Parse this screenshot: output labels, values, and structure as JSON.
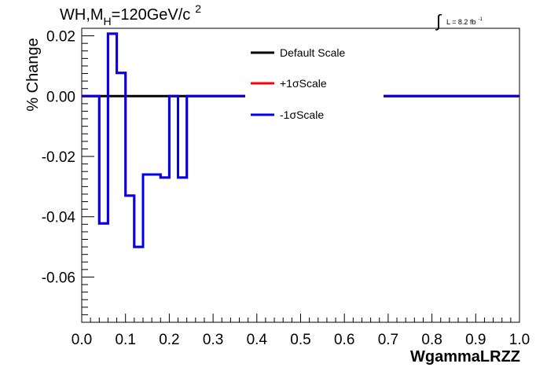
{
  "chart_data": {
    "type": "line",
    "title": "WH,M",
    "title_sub": "H",
    "title_rest": "=120GeV/c",
    "title_sup": "2",
    "lumi": "L = 8.2 fb",
    "lumi_sup": "-1",
    "xlabel": "WgammaLRZZ",
    "ylabel": "% Change",
    "xlim": [
      0.0,
      1.0
    ],
    "ylim": [
      -0.075,
      0.0225
    ],
    "x_ticks": [
      "0.0",
      "0.1",
      "0.2",
      "0.3",
      "0.4",
      "0.5",
      "0.6",
      "0.7",
      "0.8",
      "0.9",
      "1.0"
    ],
    "y_ticks": [
      "-0.06",
      "-0.04",
      "-0.02",
      "0.00",
      "0.02"
    ],
    "grid": false,
    "legend_position": "top-right",
    "series": [
      {
        "name": "Default Scale",
        "color": "#000000",
        "bins_x": [
          0.0,
          0.04,
          0.06,
          0.08,
          0.1,
          0.12,
          0.14,
          0.16,
          0.18,
          0.2,
          0.22,
          0.24,
          0.26,
          0.28,
          0.3,
          0.32,
          0.34,
          0.36,
          0.38,
          0.4,
          0.42,
          0.44,
          0.46,
          0.48,
          0.5,
          0.52,
          0.54,
          0.56,
          0.58,
          0.6,
          0.62,
          0.64,
          0.66,
          0.68,
          0.7,
          0.72,
          0.74,
          0.76,
          0.78,
          0.8,
          0.82,
          0.84,
          0.86,
          0.88,
          0.9,
          0.92,
          0.94,
          0.96,
          0.98,
          1.0
        ],
        "values": [
          0.0,
          0.0,
          0.0,
          0.0,
          0.0,
          0.0,
          0.0,
          0.0,
          0.0,
          0.0,
          0.0,
          0.0,
          0.0,
          0.0,
          0.0,
          0.0,
          0.0,
          0.0,
          0.0,
          0.0,
          0.0,
          0.0,
          0.0,
          0.0,
          0.0,
          0.0,
          0.0,
          0.0,
          0.0,
          0.0,
          0.0,
          0.0,
          0.0,
          0.0,
          0.0,
          0.0,
          0.0,
          0.0,
          0.0,
          0.0,
          0.0,
          0.0,
          0.0,
          0.0,
          0.0,
          0.0,
          0.0,
          0.0,
          0.0
        ]
      },
      {
        "name": "+1σScale",
        "color": "#ff0000",
        "bins_x": [
          0.0,
          0.04,
          0.06,
          0.08,
          0.1,
          0.12,
          0.14,
          0.16,
          0.18,
          0.2,
          0.22,
          0.24,
          0.26,
          0.28,
          0.3,
          0.32,
          0.34,
          0.36,
          0.38,
          0.4,
          0.42,
          0.44,
          0.46,
          0.48,
          0.5,
          0.52,
          0.54,
          0.56,
          0.58,
          0.6,
          0.62,
          0.64,
          0.66,
          0.68,
          0.7,
          0.72,
          0.74,
          0.76,
          0.78,
          0.8,
          0.82,
          0.84,
          0.86,
          0.88,
          0.9,
          0.92,
          0.94,
          0.96,
          0.98,
          1.0
        ],
        "values": [
          0.0,
          -0.0422,
          0.0207,
          0.0077,
          -0.033,
          -0.05,
          -0.026,
          -0.026,
          -0.027,
          0.0,
          -0.027,
          0.0,
          0.0,
          0.0,
          0.0,
          0.0,
          0.0,
          0.0,
          0.0,
          0.0,
          0.0,
          0.0,
          0.0,
          0.0,
          0.0,
          0.0,
          0.0,
          0.0,
          0.0,
          0.0,
          0.0,
          0.0,
          0.0,
          0.0,
          0.0,
          0.0,
          0.0,
          0.0,
          0.0,
          0.0,
          0.0,
          0.0,
          0.0,
          0.0,
          0.0,
          0.0,
          0.0,
          0.0,
          0.0
        ]
      },
      {
        "name": "-1σScale",
        "color": "#0000ee",
        "bins_x": [
          0.0,
          0.04,
          0.06,
          0.08,
          0.1,
          0.12,
          0.14,
          0.16,
          0.18,
          0.2,
          0.22,
          0.24,
          0.26,
          0.28,
          0.3,
          0.32,
          0.34,
          0.36,
          0.38,
          0.4,
          0.42,
          0.44,
          0.46,
          0.48,
          0.5,
          0.52,
          0.54,
          0.56,
          0.58,
          0.6,
          0.62,
          0.64,
          0.66,
          0.68,
          0.7,
          0.72,
          0.74,
          0.76,
          0.78,
          0.8,
          0.82,
          0.84,
          0.86,
          0.88,
          0.9,
          0.92,
          0.94,
          0.96,
          0.98,
          1.0
        ],
        "values": [
          0.0,
          -0.0422,
          0.0207,
          0.0077,
          -0.033,
          -0.05,
          -0.026,
          -0.026,
          -0.027,
          0.0,
          -0.027,
          0.0,
          0.0,
          0.0,
          0.0,
          0.0,
          0.0,
          0.0,
          0.0,
          0.0,
          0.0,
          0.0,
          0.0,
          0.0,
          0.0,
          0.0,
          0.0,
          0.0,
          0.0,
          0.0,
          0.0,
          0.0,
          0.0,
          0.0,
          0.0,
          0.0,
          0.0,
          0.0,
          0.0,
          0.0,
          0.0,
          0.0,
          0.0,
          0.0,
          0.0,
          0.0,
          0.0,
          0.0,
          0.0
        ]
      }
    ]
  }
}
